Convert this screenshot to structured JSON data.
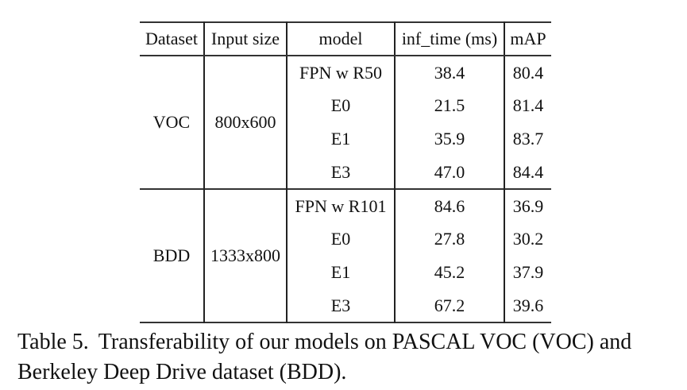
{
  "table": {
    "headers": [
      "Dataset",
      "Input size",
      "model",
      "inf_time (ms)",
      "mAP"
    ],
    "groups": [
      {
        "dataset": "VOC",
        "input_size": "800x600",
        "rows": [
          {
            "model": "FPN w R50",
            "inf_time": "38.4",
            "inf_time_bold": false,
            "map": "80.4",
            "map_bold": false
          },
          {
            "model": "E0",
            "inf_time": "21.5",
            "inf_time_bold": true,
            "map": "81.4",
            "map_bold": false
          },
          {
            "model": "E1",
            "inf_time": "35.9",
            "inf_time_bold": false,
            "map": "83.7",
            "map_bold": false
          },
          {
            "model": "E3",
            "inf_time": "47.0",
            "inf_time_bold": false,
            "map": "84.4",
            "map_bold": true
          }
        ]
      },
      {
        "dataset": "BDD",
        "input_size": "1333x800",
        "rows": [
          {
            "model": "FPN w R101",
            "inf_time": "84.6",
            "inf_time_bold": false,
            "map": "36.9",
            "map_bold": false
          },
          {
            "model": "E0",
            "inf_time": "27.8",
            "inf_time_bold": true,
            "map": "30.2",
            "map_bold": false
          },
          {
            "model": "E1",
            "inf_time": "45.2",
            "inf_time_bold": false,
            "map": "37.9",
            "map_bold": false
          },
          {
            "model": "E3",
            "inf_time": "67.2",
            "inf_time_bold": false,
            "map": "39.6",
            "map_bold": true
          }
        ]
      }
    ]
  },
  "caption": {
    "label": "Table 5.",
    "text": "Transferability of our models on PASCAL VOC (VOC) and Berkeley Deep Drive dataset (BDD)."
  }
}
